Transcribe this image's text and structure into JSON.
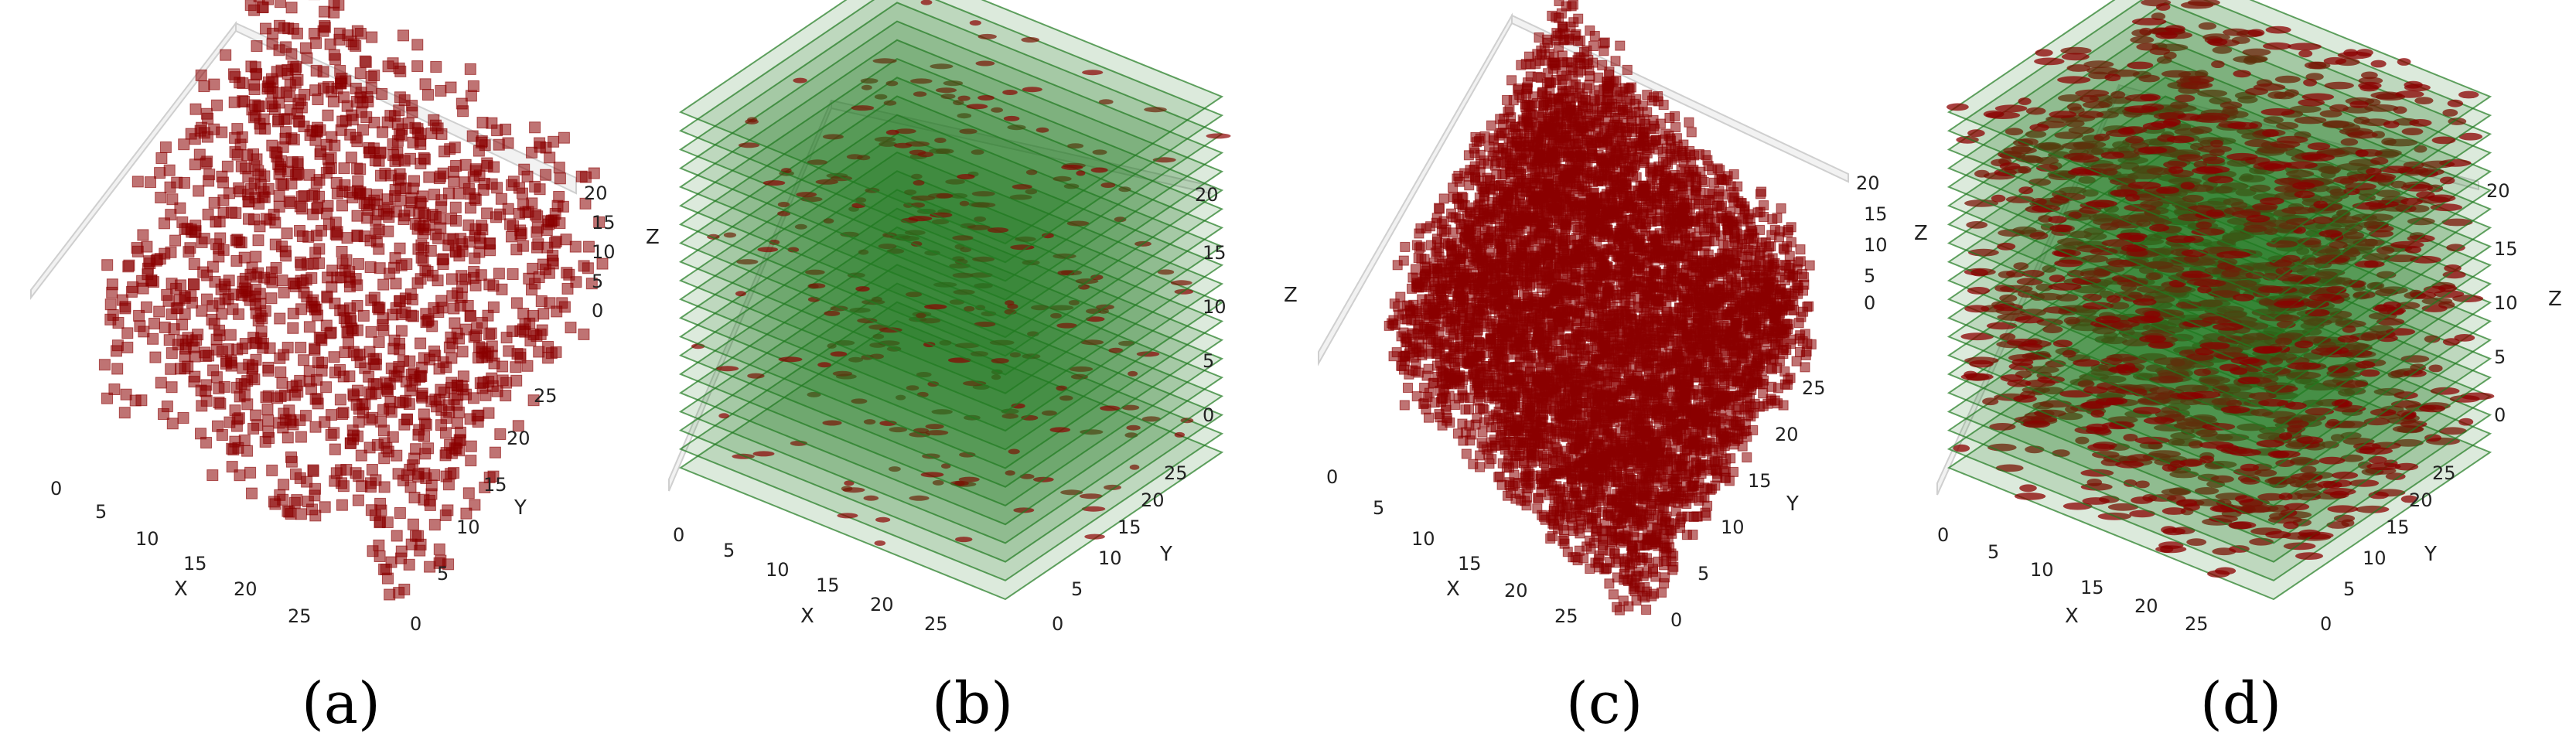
{
  "colors": {
    "voxel": "#8b0000",
    "layer": "#1f7a1f",
    "pane": "#f2f2f2",
    "grid": "#dcdcdc"
  },
  "chart_data": [
    {
      "type": "scatter3d",
      "label": "(a)",
      "title": "",
      "axes": {
        "x": "X",
        "y": "Y",
        "z": ""
      },
      "xlim": [
        0,
        30
      ],
      "ylim": [
        0,
        30
      ],
      "zlim": [
        0,
        20
      ],
      "xticks": [
        "0",
        "5",
        "10",
        "15",
        "20",
        "25"
      ],
      "yticks": [
        "0",
        "5",
        "10",
        "15",
        "20",
        "25"
      ],
      "zticks": [
        "0",
        "5",
        "10",
        "15",
        "20"
      ],
      "grid": true,
      "series": [
        {
          "kind": "voxels",
          "color": "#8b0000",
          "opacity": 0.55,
          "approx_count": 1400
        }
      ]
    },
    {
      "type": "scatter3d",
      "label": "(b)",
      "title": "",
      "axes": {
        "x": "X",
        "y": "Y",
        "z": "Z"
      },
      "xlim": [
        0,
        30
      ],
      "ylim": [
        0,
        30
      ],
      "zlim": [
        0,
        20
      ],
      "xticks": [
        "0",
        "5",
        "10",
        "15",
        "20",
        "25"
      ],
      "yticks": [
        "0",
        "5",
        "10",
        "15",
        "20",
        "25"
      ],
      "zticks": [
        "0",
        "5",
        "10",
        "15",
        "20"
      ],
      "grid": true,
      "series": [
        {
          "kind": "voxels",
          "color": "#8b0000",
          "opacity": 0.7,
          "approx_count": 300
        },
        {
          "kind": "layers",
          "color": "#1f7a1f",
          "opacity": 0.45,
          "approx_count": 20
        }
      ]
    },
    {
      "type": "scatter3d",
      "label": "(c)",
      "title": "",
      "axes": {
        "x": "X",
        "y": "Y",
        "z": "Z"
      },
      "xlim": [
        0,
        30
      ],
      "ylim": [
        0,
        30
      ],
      "zlim": [
        0,
        20
      ],
      "xticks": [
        "0",
        "5",
        "10",
        "15",
        "20",
        "25"
      ],
      "yticks": [
        "0",
        "5",
        "10",
        "15",
        "20",
        "25"
      ],
      "zticks": [
        "0",
        "5",
        "10",
        "15",
        "20"
      ],
      "grid": true,
      "series": [
        {
          "kind": "voxels",
          "color": "#8b0000",
          "opacity": 0.55,
          "approx_count": 6000
        }
      ]
    },
    {
      "type": "scatter3d",
      "label": "(d)",
      "title": "",
      "axes": {
        "x": "X",
        "y": "Y",
        "z": "Z"
      },
      "xlim": [
        0,
        30
      ],
      "ylim": [
        0,
        30
      ],
      "zlim": [
        0,
        20
      ],
      "xticks": [
        "0",
        "5",
        "10",
        "15",
        "20",
        "25"
      ],
      "yticks": [
        "0",
        "5",
        "10",
        "15",
        "20",
        "25"
      ],
      "zticks": [
        "0",
        "5",
        "10",
        "15",
        "20"
      ],
      "grid": true,
      "series": [
        {
          "kind": "voxels",
          "color": "#8b0000",
          "opacity": 0.75,
          "approx_count": 1600
        },
        {
          "kind": "layers",
          "color": "#1f7a1f",
          "opacity": 0.45,
          "approx_count": 20
        }
      ]
    }
  ]
}
